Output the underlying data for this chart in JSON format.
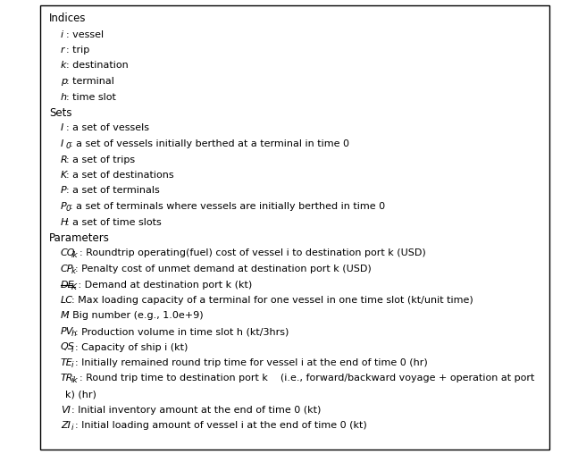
{
  "background_color": "#ffffff",
  "border_color": "#000000",
  "figsize": [
    6.28,
    5.08
  ],
  "dpi": 100,
  "lines": [
    {
      "type": "header",
      "parts": [
        {
          "text": "Indices",
          "style": "normal"
        }
      ]
    },
    {
      "type": "item",
      "parts": [
        {
          "text": "i",
          "style": "italic"
        },
        {
          "text": ": vessel",
          "style": "normal"
        }
      ]
    },
    {
      "type": "item",
      "parts": [
        {
          "text": "r",
          "style": "italic"
        },
        {
          "text": ": trip",
          "style": "normal"
        }
      ]
    },
    {
      "type": "item",
      "parts": [
        {
          "text": "k",
          "style": "italic"
        },
        {
          "text": ": destination",
          "style": "normal"
        }
      ]
    },
    {
      "type": "item",
      "parts": [
        {
          "text": "p",
          "style": "italic"
        },
        {
          "text": ": terminal",
          "style": "normal"
        }
      ]
    },
    {
      "type": "item",
      "parts": [
        {
          "text": "h",
          "style": "italic"
        },
        {
          "text": ": time slot",
          "style": "normal"
        }
      ]
    },
    {
      "type": "header",
      "parts": [
        {
          "text": "Sets",
          "style": "normal"
        }
      ]
    },
    {
      "type": "item",
      "parts": [
        {
          "text": "I",
          "style": "italic"
        },
        {
          "text": ": a set of vessels",
          "style": "normal"
        }
      ]
    },
    {
      "type": "item",
      "parts": [
        {
          "text": "I",
          "style": "italic"
        },
        {
          "text": "0",
          "style": "italic_sub"
        },
        {
          "text": ": a set of vessels initially berthed at a terminal in time 0",
          "style": "normal"
        }
      ]
    },
    {
      "type": "item",
      "parts": [
        {
          "text": "R",
          "style": "italic"
        },
        {
          "text": ": a set of trips",
          "style": "normal"
        }
      ]
    },
    {
      "type": "item",
      "parts": [
        {
          "text": "K",
          "style": "italic"
        },
        {
          "text": ": a set of destinations",
          "style": "normal"
        }
      ]
    },
    {
      "type": "item",
      "parts": [
        {
          "text": "P",
          "style": "italic"
        },
        {
          "text": ": a set of terminals",
          "style": "normal"
        }
      ]
    },
    {
      "type": "item",
      "parts": [
        {
          "text": "P",
          "style": "italic"
        },
        {
          "text": "0",
          "style": "italic_sub"
        },
        {
          "text": ": a set of terminals where vessels are initially berthed in time 0",
          "style": "normal"
        }
      ]
    },
    {
      "type": "item",
      "parts": [
        {
          "text": "H",
          "style": "italic"
        },
        {
          "text": ": a set of time slots",
          "style": "normal"
        }
      ]
    },
    {
      "type": "header",
      "parts": [
        {
          "text": "Parameters",
          "style": "normal"
        }
      ]
    },
    {
      "type": "item",
      "parts": [
        {
          "text": "CO",
          "style": "italic"
        },
        {
          "text": "ik",
          "style": "italic_sub"
        },
        {
          "text": ": Roundtrip operating(fuel) cost of vessel i to destination port k (USD)",
          "style": "normal"
        }
      ]
    },
    {
      "type": "item",
      "parts": [
        {
          "text": "CP",
          "style": "italic"
        },
        {
          "text": "k",
          "style": "italic_sub"
        },
        {
          "text": ": Penalty cost of unmet demand at destination port k (USD)",
          "style": "normal"
        }
      ]
    },
    {
      "type": "item",
      "parts": [
        {
          "text": "DE",
          "style": "italic_strike"
        },
        {
          "text": "K",
          "style": "italic_sub_strike"
        },
        {
          "text": " : Demand at destination port k (kt)",
          "style": "normal"
        }
      ]
    },
    {
      "type": "item",
      "parts": [
        {
          "text": "LC",
          "style": "italic"
        },
        {
          "text": ": Max loading capacity of a terminal for one vessel in one time slot (kt/unit time)",
          "style": "normal"
        }
      ]
    },
    {
      "type": "item",
      "parts": [
        {
          "text": "M",
          "style": "italic"
        },
        {
          "text": ": Big number (e.g., 1.0e+9)",
          "style": "normal"
        }
      ]
    },
    {
      "type": "item",
      "parts": [
        {
          "text": "PV",
          "style": "italic"
        },
        {
          "text": "h",
          "style": "italic_sub"
        },
        {
          "text": ": Production volume in time slot h (kt/3hrs)",
          "style": "normal"
        }
      ]
    },
    {
      "type": "item",
      "parts": [
        {
          "text": "QS",
          "style": "italic"
        },
        {
          "text": "i",
          "style": "italic_sub"
        },
        {
          "text": ": Capacity of ship i (kt)",
          "style": "normal"
        }
      ]
    },
    {
      "type": "item",
      "parts": [
        {
          "text": "TE",
          "style": "italic"
        },
        {
          "text": "i",
          "style": "italic_sub"
        },
        {
          "text": ": Initially remained round trip time for vessel i at the end of time 0 (hr)",
          "style": "normal"
        }
      ]
    },
    {
      "type": "item_wrap",
      "parts": [
        {
          "text": "TR",
          "style": "italic"
        },
        {
          "text": "ik",
          "style": "italic_sub"
        },
        {
          "text": ": Round trip time to destination port k    (i.e., forward/backward voyage + operation at port k) (hr)",
          "style": "normal"
        }
      ]
    },
    {
      "type": "item",
      "parts": [
        {
          "text": "VI",
          "style": "italic"
        },
        {
          "text": ": Initial inventory amount at the end of time 0 (kt)",
          "style": "normal"
        }
      ]
    },
    {
      "type": "item",
      "parts": [
        {
          "text": "ZI",
          "style": "italic"
        },
        {
          "text": "i",
          "style": "italic_sub"
        },
        {
          "text": ": Initial loading amount of vessel i at the end of time 0 (kt)",
          "style": "normal"
        }
      ]
    }
  ]
}
